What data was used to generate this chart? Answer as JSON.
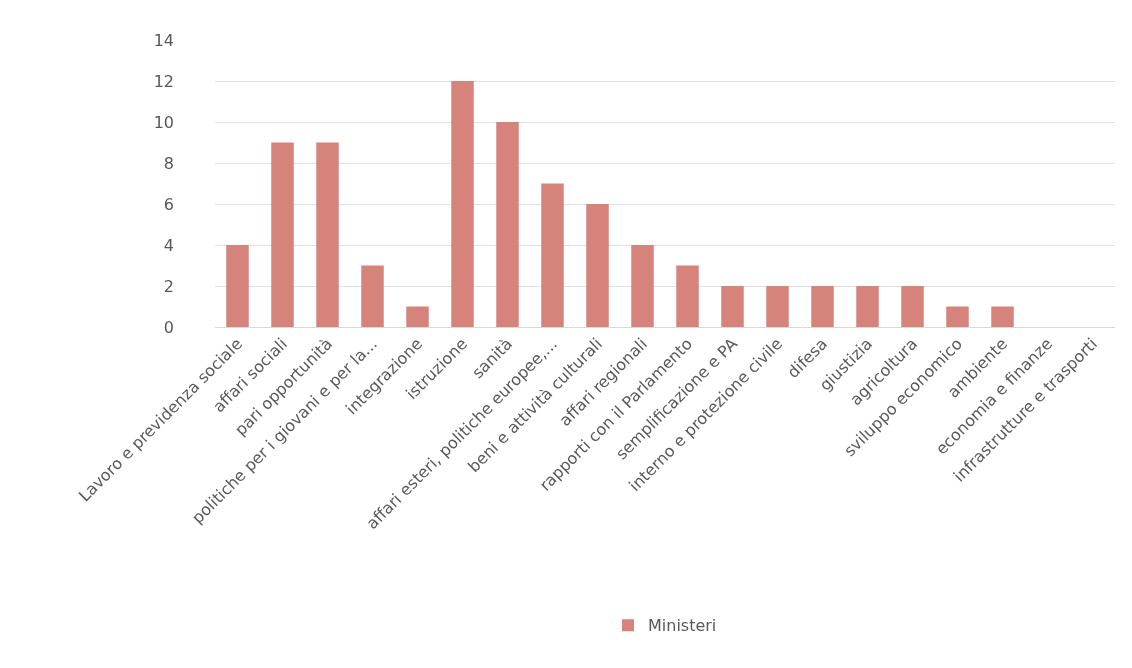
{
  "chart_data": {
    "type": "bar",
    "categories": [
      "Lavoro e previdenza sociale",
      "affari sociali",
      "pari opportunità",
      "politiche per i giovani e per la...",
      "integrazione",
      "istruzione",
      "sanità",
      "affari esteri, politiche europee,...",
      "beni e attività culturali",
      "affari regionali",
      "rapporti con il Parlamento",
      "semplificazione e PA",
      "interno e protezione civile",
      "difesa",
      "giustizia",
      "agricoltura",
      "sviluppo economico",
      "ambiente",
      "economia e finanze",
      "infrastrutture e trasporti"
    ],
    "series": [
      {
        "name": "Ministeri",
        "color": "#d5837b",
        "values": [
          4,
          9,
          9,
          3,
          1,
          12,
          10,
          7,
          6,
          4,
          3,
          2,
          2,
          2,
          2,
          2,
          1,
          1,
          0,
          0
        ]
      }
    ],
    "ylim": [
      0,
      14
    ],
    "yticks": [
      0,
      2,
      4,
      6,
      8,
      10,
      12,
      14
    ],
    "grid": "y",
    "legend": "bottom"
  }
}
